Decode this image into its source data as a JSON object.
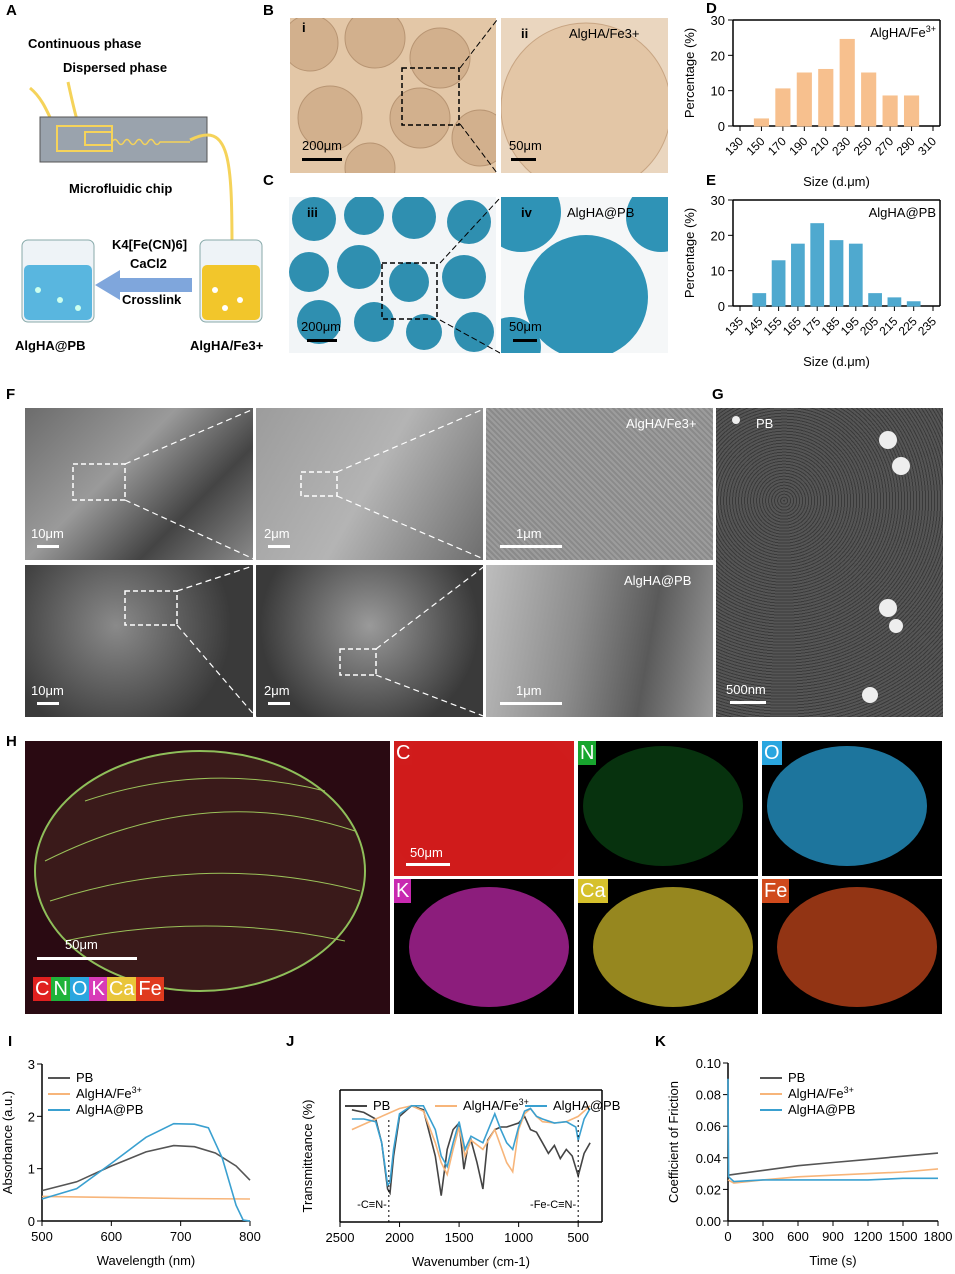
{
  "panels": {
    "A": "A",
    "B": "B",
    "C": "C",
    "D": "D",
    "E": "E",
    "F": "F",
    "G": "G",
    "H": "H",
    "I": "I",
    "J": "J",
    "K": "K"
  },
  "schematic": {
    "continuous_phase": "Continuous phase",
    "dispersed_phase": "Dispersed phase",
    "chip": "Microfluidic chip",
    "reagent1": "K4[Fe(CN)6]",
    "reagent2": "CaCl2",
    "crosslink": "Crosslink",
    "left_beaker": "AlgHA@PB",
    "right_beaker": "AlgHA/Fe3+",
    "colors": {
      "fluid": "#f5d35a",
      "chip": "#9aa3ad",
      "arrow": "#7fa6dc",
      "blue_liquid": "#59b6df",
      "yellow_liquid": "#f2c62b"
    }
  },
  "micrographs": {
    "B_i": {
      "label": "i",
      "scale": "200μm"
    },
    "B_ii": {
      "label": "ii",
      "sample": "AlgHA/Fe3+",
      "scale": "50μm"
    },
    "C_iii": {
      "label": "iii",
      "scale": "200μm"
    },
    "C_iv": {
      "label": "iv",
      "sample": "AlgHA@PB",
      "scale": "50μm"
    }
  },
  "sem": {
    "row1": {
      "scales": [
        "10μm",
        "2μm",
        "1μm"
      ],
      "sample": "AlgHA/Fe3+"
    },
    "row2": {
      "scales": [
        "10μm",
        "2μm",
        "1μm"
      ],
      "sample": "AlgHA@PB"
    },
    "G": {
      "sample": "PB",
      "scale": "500nm"
    }
  },
  "eds": {
    "overlay_scale": "50μm",
    "map_scale": "50μm",
    "legend": [
      {
        "el": "C",
        "color": "#e0201f"
      },
      {
        "el": "N",
        "color": "#1fb33a"
      },
      {
        "el": "O",
        "color": "#2aa6df"
      },
      {
        "el": "K",
        "color": "#d83bb8"
      },
      {
        "el": "Ca",
        "color": "#e9c53a"
      },
      {
        "el": "Fe",
        "color": "#e03a1e"
      }
    ],
    "maps": [
      {
        "el": "C",
        "color": "#d01c1c"
      },
      {
        "el": "N",
        "color": "#18a52e"
      },
      {
        "el": "O",
        "color": "#2aa6df"
      },
      {
        "el": "K",
        "color": "#c829b0"
      },
      {
        "el": "Ca",
        "color": "#d6c12c"
      },
      {
        "el": "Fe",
        "color": "#d04a1c"
      }
    ]
  },
  "chart_data": [
    {
      "id": "D",
      "type": "bar",
      "ylabel": "Percentage (%)",
      "xlabel": "Size (d.μm)",
      "legend": "AlgHA/Fe3+",
      "color": "#f7c08e",
      "categories": [
        "130",
        "150",
        "170",
        "190",
        "210",
        "230",
        "250",
        "270",
        "290",
        "310"
      ],
      "values": [
        0,
        2,
        10.5,
        15,
        16,
        24.5,
        15,
        8.5,
        8.5,
        0
      ],
      "ylim": [
        0,
        30
      ],
      "yticks": [
        "0",
        "10",
        "20",
        "30"
      ]
    },
    {
      "id": "E",
      "type": "bar",
      "ylabel": "Percentage (%)",
      "xlabel": "Size (d.μm)",
      "legend": "AlgHA@PB",
      "color": "#4fa9cf",
      "categories": [
        "135",
        "145",
        "155",
        "165",
        "175",
        "185",
        "195",
        "205",
        "215",
        "225",
        "235"
      ],
      "values": [
        0,
        3.5,
        12.8,
        17.5,
        23.3,
        18.5,
        17.5,
        3.5,
        2.3,
        1.2,
        0
      ],
      "ylim": [
        0,
        30
      ],
      "yticks": [
        "0",
        "10",
        "20",
        "30"
      ]
    },
    {
      "id": "I",
      "type": "line",
      "xlabel": "Wavelength (nm)",
      "ylabel": "Absorbance (a.u.)",
      "xlim": [
        500,
        800
      ],
      "ylim": [
        0,
        3
      ],
      "xticks": [
        "500",
        "600",
        "700",
        "800"
      ],
      "yticks": [
        "0",
        "1",
        "2",
        "3"
      ],
      "legend_placement": "top-left",
      "series": [
        {
          "name": "PB",
          "color": "#555555",
          "x": [
            500,
            550,
            600,
            650,
            690,
            720,
            750,
            780,
            800
          ],
          "y": [
            0.58,
            0.75,
            1.05,
            1.32,
            1.44,
            1.42,
            1.3,
            1.05,
            0.78
          ]
        },
        {
          "name": "AlgHA/Fe3+",
          "color": "#f7b57a",
          "x": [
            500,
            600,
            700,
            800
          ],
          "y": [
            0.47,
            0.45,
            0.43,
            0.42
          ]
        },
        {
          "name": "AlgHA@PB",
          "color": "#3aa0d0",
          "x": [
            500,
            550,
            600,
            650,
            690,
            720,
            740,
            760,
            780,
            790,
            800
          ],
          "y": [
            0.42,
            0.62,
            1.1,
            1.6,
            1.86,
            1.85,
            1.78,
            1.2,
            0.3,
            0.02,
            0
          ]
        }
      ]
    },
    {
      "id": "J",
      "type": "line",
      "xlabel": "Wavenumber (cm-1)",
      "ylabel": "Transmitteance (%)",
      "xlim": [
        2500,
        300
      ],
      "xticks": [
        "2500",
        "2000",
        "1500",
        "1000",
        "500"
      ],
      "legend_placement": "top",
      "annotations": [
        "-C≡N-",
        "-Fe-C≡N-"
      ],
      "series": [
        {
          "name": "PB",
          "color": "#444444",
          "x": [
            2400,
            2300,
            2200,
            2150,
            2100,
            2080,
            2050,
            2000,
            1900,
            1800,
            1700,
            1650,
            1600,
            1550,
            1500,
            1460,
            1430,
            1400,
            1350,
            1300,
            1260,
            1200,
            1150,
            1100,
            1000,
            950,
            900,
            850,
            800,
            750,
            700,
            650,
            600,
            550,
            500,
            450,
            400
          ],
          "y": [
            85,
            83,
            78,
            60,
            25,
            22,
            50,
            80,
            88,
            85,
            50,
            20,
            55,
            70,
            75,
            40,
            55,
            62,
            45,
            25,
            62,
            70,
            72,
            72,
            75,
            80,
            70,
            68,
            60,
            52,
            58,
            48,
            55,
            50,
            35,
            52,
            60
          ]
        },
        {
          "name": "AlgHA/Fe3+",
          "color": "#f7b57a",
          "x": [
            2400,
            2200,
            2000,
            1900,
            1800,
            1700,
            1650,
            1600,
            1550,
            1500,
            1450,
            1400,
            1300,
            1200,
            1100,
            1050,
            1000,
            950,
            900,
            850,
            800,
            700,
            600,
            500,
            400
          ],
          "y": [
            70,
            78,
            86,
            88,
            84,
            60,
            45,
            36,
            55,
            72,
            50,
            62,
            55,
            70,
            45,
            38,
            70,
            82,
            86,
            80,
            76,
            75,
            76,
            80,
            88
          ]
        },
        {
          "name": "AlgHA@PB",
          "color": "#3aa0d0",
          "x": [
            2400,
            2300,
            2200,
            2150,
            2100,
            2080,
            2050,
            2000,
            1900,
            1800,
            1700,
            1650,
            1600,
            1550,
            1500,
            1450,
            1400,
            1300,
            1200,
            1150,
            1100,
            1050,
            1000,
            950,
            900,
            850,
            800,
            700,
            600,
            520,
            500,
            450,
            400
          ],
          "y": [
            78,
            78,
            76,
            60,
            28,
            30,
            55,
            82,
            88,
            88,
            70,
            50,
            42,
            60,
            76,
            55,
            65,
            60,
            82,
            70,
            60,
            55,
            72,
            84,
            86,
            80,
            78,
            75,
            76,
            72,
            62,
            78,
            86
          ]
        }
      ]
    },
    {
      "id": "K",
      "type": "line",
      "xlabel": "Time (s)",
      "ylabel": "Coefficient of Friction",
      "xlim": [
        0,
        1800
      ],
      "ylim": [
        0,
        0.1
      ],
      "xticks": [
        "0",
        "300",
        "600",
        "900",
        "1200",
        "1500",
        "1800"
      ],
      "yticks": [
        "0.00",
        "0.02",
        "0.04",
        "0.06",
        "0.08",
        "0.10"
      ],
      "legend_placement": "top-left",
      "series": [
        {
          "name": "PB",
          "color": "#555555",
          "x": [
            0,
            100,
            300,
            600,
            900,
            1200,
            1500,
            1800
          ],
          "y": [
            0.029,
            0.03,
            0.032,
            0.035,
            0.037,
            0.039,
            0.041,
            0.043
          ]
        },
        {
          "name": "AlgHA/Fe3+",
          "color": "#f7b57a",
          "x": [
            0,
            50,
            300,
            600,
            900,
            1200,
            1500,
            1800
          ],
          "y": [
            0.026,
            0.024,
            0.026,
            0.028,
            0.029,
            0.03,
            0.031,
            0.033
          ]
        },
        {
          "name": "AlgHA@PB",
          "color": "#3aa0d0",
          "x": [
            0,
            5,
            50,
            300,
            600,
            900,
            1200,
            1500,
            1800
          ],
          "y": [
            0.09,
            0.028,
            0.025,
            0.026,
            0.026,
            0.026,
            0.026,
            0.027,
            0.027
          ]
        }
      ]
    }
  ]
}
